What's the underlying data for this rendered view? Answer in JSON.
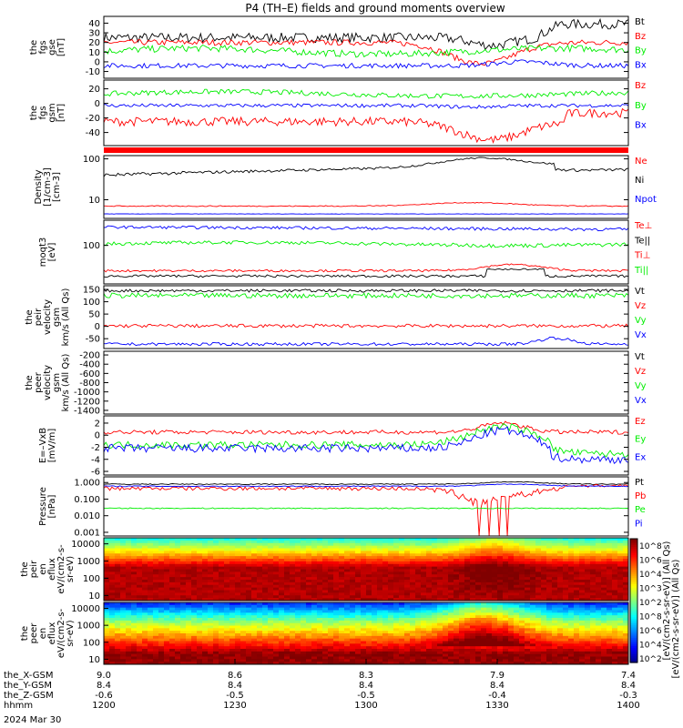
{
  "title": "P4 (TH–E) fields and ground moments overview",
  "colors": {
    "black": "#000000",
    "red": "#ff0000",
    "green": "#00ee00",
    "blue": "#0000ff"
  },
  "chart_data": [
    {
      "id": "fgs_gse",
      "type": "line",
      "ylabel": [
        "the",
        "fgs",
        "gse",
        "[nT]"
      ],
      "yticks": [
        -10,
        0,
        10,
        20,
        30,
        40
      ],
      "ylim": [
        -17,
        47
      ],
      "legend": [
        {
          "name": "Bt",
          "color": "#000000"
        },
        {
          "name": "Bz",
          "color": "#ff0000"
        },
        {
          "name": "By",
          "color": "#00ee00"
        },
        {
          "name": "Bx",
          "color": "#0000ff"
        }
      ]
    },
    {
      "id": "fgs_gsm",
      "type": "line",
      "ylabel": [
        "the",
        "fgs",
        "gsm",
        "[nT]"
      ],
      "yticks": [
        -40,
        -20,
        0,
        20
      ],
      "ylim": [
        -58,
        32
      ],
      "legend": [
        {
          "name": "Bz",
          "color": "#ff0000"
        },
        {
          "name": "By",
          "color": "#00ee00"
        },
        {
          "name": "Bx",
          "color": "#0000ff"
        }
      ]
    },
    {
      "id": "density",
      "type": "line",
      "ylabel": [
        "Density",
        "[1/cm-3]",
        "[cm-3]"
      ],
      "yscale": "log",
      "yticks": [
        10,
        100
      ],
      "ylim": [
        3.5,
        120
      ],
      "legend": [
        {
          "name": "Ne",
          "color": "#ff0000"
        },
        {
          "name": "Ni",
          "color": "#000000"
        },
        {
          "name": "Npot",
          "color": "#0000ff"
        }
      ]
    },
    {
      "id": "temperature",
      "type": "line",
      "ylabel": [
        "moqt3",
        "[eV]"
      ],
      "yscale": "log",
      "yticks": [
        100
      ],
      "ylim": [
        10,
        450
      ],
      "legend": [
        {
          "name": "Te⊥",
          "color": "#ff0000"
        },
        {
          "name": "Te||",
          "color": "#000000"
        },
        {
          "name": "Ti⊥",
          "color": "#ff0000"
        },
        {
          "name": "Ti||",
          "color": "#00ee00"
        }
      ]
    },
    {
      "id": "peir_velocity",
      "type": "line",
      "ylabel": [
        "the",
        "peir",
        "velocity",
        "gsm",
        "km/s (All Qs)"
      ],
      "yticks": [
        -50,
        0,
        50,
        100,
        150
      ],
      "ylim": [
        -90,
        165
      ],
      "legend": [
        {
          "name": "Vt",
          "color": "#000000"
        },
        {
          "name": "Vz",
          "color": "#ff0000"
        },
        {
          "name": "Vy",
          "color": "#00ee00"
        },
        {
          "name": "Vx",
          "color": "#0000ff"
        }
      ]
    },
    {
      "id": "peer_velocity",
      "type": "line",
      "ylabel": [
        "the",
        "peer",
        "velocity",
        "gsm",
        "km/s (All Qs)"
      ],
      "yticks": [
        -1400,
        -1200,
        -1000,
        -800,
        -600,
        -400,
        -200
      ],
      "ylim": [
        -1480,
        -120
      ],
      "legend": [
        {
          "name": "Vt",
          "color": "#000000"
        },
        {
          "name": "Vz",
          "color": "#ff0000"
        },
        {
          "name": "Vy",
          "color": "#00ee00"
        },
        {
          "name": "Vx",
          "color": "#0000ff"
        }
      ]
    },
    {
      "id": "efield",
      "type": "line",
      "ylabel": [
        "E=–VxB",
        "[mV/m]"
      ],
      "yticks": [
        -6,
        -4,
        -2,
        0,
        2
      ],
      "ylim": [
        -6.6,
        3.2
      ],
      "legend": [
        {
          "name": "Ez",
          "color": "#ff0000"
        },
        {
          "name": "Ey",
          "color": "#00ee00"
        },
        {
          "name": "Ex",
          "color": "#0000ff"
        }
      ]
    },
    {
      "id": "pressure",
      "type": "line",
      "ylabel": [
        "Pressure",
        "[nPa]"
      ],
      "yscale": "log",
      "yticks": [
        "1.000",
        "0.100",
        "0.010",
        "0.001"
      ],
      "ylim": [
        0.0006,
        2.2
      ],
      "legend": [
        {
          "name": "Pt",
          "color": "#000000"
        },
        {
          "name": "Pb",
          "color": "#ff0000"
        },
        {
          "name": "Pe",
          "color": "#00ee00"
        },
        {
          "name": "Pi",
          "color": "#0000ff"
        }
      ]
    },
    {
      "id": "peir_spec",
      "type": "heatmap",
      "ylabel": [
        "the",
        "peir",
        "en",
        "eflux",
        "eV/(cm2-s-",
        "sr-eV)"
      ],
      "yscale": "log",
      "yticks": [
        10,
        100,
        1000,
        10000
      ]
    },
    {
      "id": "peer_spec",
      "type": "heatmap",
      "ylabel": [
        "the",
        "peer",
        "en",
        "eflux",
        "eV/(cm2-s-",
        "sr-eV)"
      ],
      "yscale": "log",
      "yticks": [
        10,
        100,
        1000,
        10000
      ]
    }
  ],
  "colorbar": {
    "ticks": [
      "10^8",
      "10^6",
      "10^4",
      "10^3",
      "10^2",
      "10^8",
      "10^6",
      "10^4",
      "10^2"
    ],
    "label": "[eV/(cm2-s-sr-eV)] (All Qs)",
    "overlap_text": "[eV/(cm2-s-sr-eV)] (All Qs)"
  },
  "xaxis": {
    "rows": [
      {
        "label": "the_X-GSM",
        "values": [
          "9.0",
          "8.6",
          "8.3",
          "7.9",
          "7.4"
        ]
      },
      {
        "label": "the_Y-GSM",
        "values": [
          "8.4",
          "8.4",
          "8.4",
          "8.4",
          "8.4"
        ]
      },
      {
        "label": "the_Z-GSM",
        "values": [
          "-0.6",
          "-0.5",
          "-0.5",
          "-0.4",
          "-0.3"
        ]
      },
      {
        "label": "hhmm",
        "values": [
          "1200",
          "1230",
          "1300",
          "1330",
          "1400"
        ]
      }
    ],
    "date": "2024 Mar 30"
  }
}
